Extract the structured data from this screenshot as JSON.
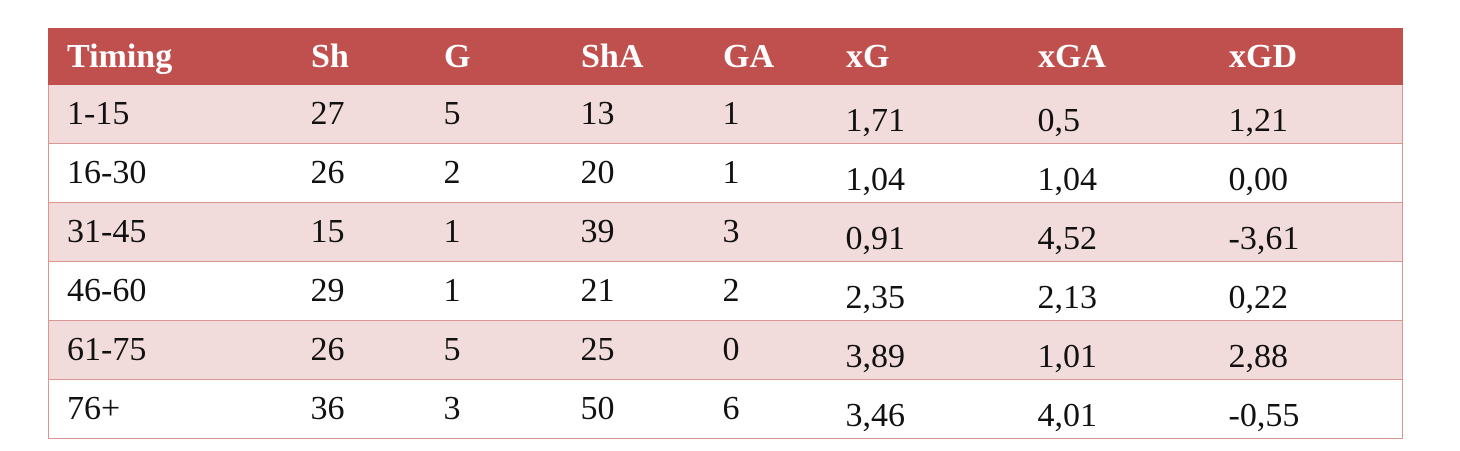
{
  "table": {
    "headers": [
      "Timing",
      "Sh",
      "G",
      "ShA",
      "GA",
      "xG",
      "xGA",
      "xGD"
    ],
    "rows": [
      [
        "1-15",
        "27",
        "5",
        "13",
        "1",
        "1,71",
        "0,5",
        "1,21"
      ],
      [
        "16-30",
        "26",
        "2",
        "20",
        "1",
        "1,04",
        "1,04",
        "0,00"
      ],
      [
        "31-45",
        "15",
        "1",
        "39",
        "3",
        "0,91",
        "4,52",
        "-3,61"
      ],
      [
        "46-60",
        "29",
        "1",
        "21",
        "2",
        "2,35",
        "2,13",
        "0,22"
      ],
      [
        "61-75",
        "26",
        "5",
        "25",
        "0",
        "3,89",
        "1,01",
        "2,88"
      ],
      [
        "76+",
        "36",
        "3",
        "50",
        "6",
        "3,46",
        "4,01",
        "-0,55"
      ]
    ]
  }
}
